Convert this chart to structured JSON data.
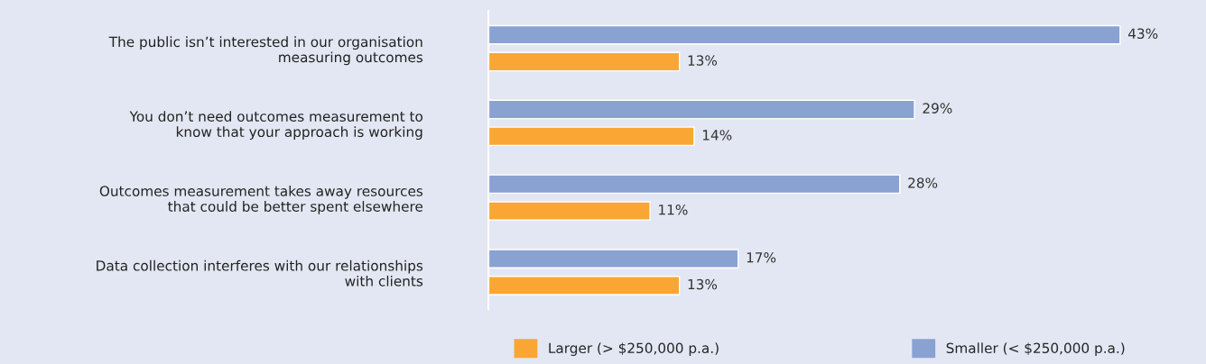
{
  "chart_data": {
    "type": "bar",
    "orientation": "horizontal",
    "categories": [
      "The public isn’t interested in our organisation\nmeasuring outcomes",
      "You don’t need outcomes measurement to\nknow that your approach is working",
      "Outcomes measurement takes away resources\nthat could be better spent elsewhere",
      "Data collection interferes with our relationships\nwith clients"
    ],
    "series": [
      {
        "name": "Larger (> $250,000 p.a.)",
        "color": "#f9a634",
        "values": [
          13,
          14,
          11,
          13
        ],
        "value_labels": [
          "13%",
          "14%",
          "11%",
          "13%"
        ]
      },
      {
        "name": "Smaller (< $250,000 p.a.)",
        "color": "#8aa2d2",
        "values": [
          43,
          29,
          28,
          17
        ],
        "value_labels": [
          "43%",
          "29%",
          "28%",
          "17%"
        ]
      }
    ],
    "legend": "bottom",
    "tick_labels": "y"
  }
}
